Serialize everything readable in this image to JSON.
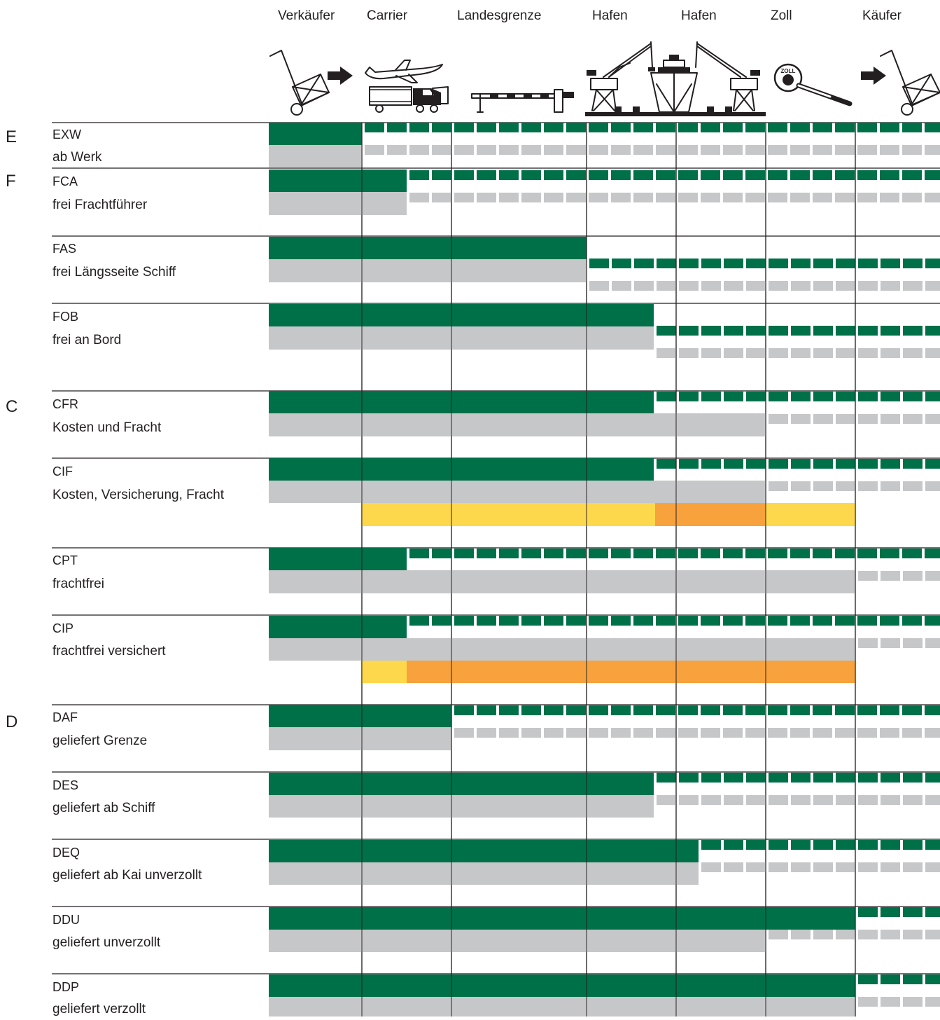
{
  "locations": [
    "Verkäufer",
    "Carrier",
    "Landesgrenze",
    "Hafen",
    "Hafen",
    "Zoll",
    "Käufer"
  ],
  "icons": [
    "hand-truck-icon",
    "arrow-right-icon",
    "airplane-icon",
    "truck-icon",
    "barrier-icon",
    "crane-icon",
    "ship-icon",
    "crane-icon",
    "customs-sign-icon",
    "arrow-right-icon",
    "hand-truck-icon"
  ],
  "colors": {
    "seller": "#007049",
    "cost": "#c6c7c9",
    "insurance": "#fdd84d",
    "insurance_highlight": "#f7a23d",
    "rule": "#000000"
  },
  "groups": [
    "E",
    "F",
    "C",
    "D"
  ],
  "terms": [
    {
      "code": "EXW",
      "name": "ab Werk",
      "group": "E",
      "risk_transfer": "Verkäufer",
      "cost_transfer": "Verkäufer",
      "insurance": null
    },
    {
      "code": "FCA",
      "name": "frei Frachtführer",
      "group": "F",
      "risk_transfer": "Carrier",
      "cost_transfer": "Carrier",
      "insurance": null
    },
    {
      "code": "FAS",
      "name": "frei Längsseite Schiff",
      "group": "",
      "risk_transfer": "Hafen",
      "cost_transfer": "Hafen",
      "insurance": null
    },
    {
      "code": "FOB",
      "name": "frei an Bord",
      "group": "",
      "risk_transfer": "Hafen",
      "cost_transfer": "Hafen",
      "insurance": null
    },
    {
      "code": "CFR",
      "name": "Kosten und Fracht",
      "group": "C",
      "risk_transfer": "Hafen",
      "cost_transfer": "Hafen",
      "insurance": null
    },
    {
      "code": "CIF",
      "name": "Kosten, Versicherung, Fracht",
      "group": "",
      "risk_transfer": "Hafen",
      "cost_transfer": "Hafen",
      "insurance": "Carrier – Zoll"
    },
    {
      "code": "CPT",
      "name": "frachtfrei",
      "group": "",
      "risk_transfer": "Carrier",
      "cost_transfer": "Zoll",
      "insurance": null
    },
    {
      "code": "CIP",
      "name": "frachtfrei versichert",
      "group": "",
      "risk_transfer": "Carrier",
      "cost_transfer": "Zoll",
      "insurance": "Carrier – Zoll"
    },
    {
      "code": "DAF",
      "name": "geliefert Grenze",
      "group": "D",
      "risk_transfer": "Landesgrenze",
      "cost_transfer": "Landesgrenze",
      "insurance": null
    },
    {
      "code": "DES",
      "name": "geliefert ab Schiff",
      "group": "",
      "risk_transfer": "Hafen",
      "cost_transfer": "Hafen",
      "insurance": null
    },
    {
      "code": "DEQ",
      "name": "geliefert ab Kai unverzollt",
      "group": "",
      "risk_transfer": "Hafen",
      "cost_transfer": "Hafen",
      "insurance": null
    },
    {
      "code": "DDU",
      "name": "geliefert unverzollt",
      "group": "",
      "risk_transfer": "Zoll",
      "cost_transfer": "Hafen",
      "insurance": null
    },
    {
      "code": "DDP",
      "name": "geliefert verzollt",
      "group": "",
      "risk_transfer": "Zoll",
      "cost_transfer": "Zoll",
      "insurance": null
    }
  ]
}
